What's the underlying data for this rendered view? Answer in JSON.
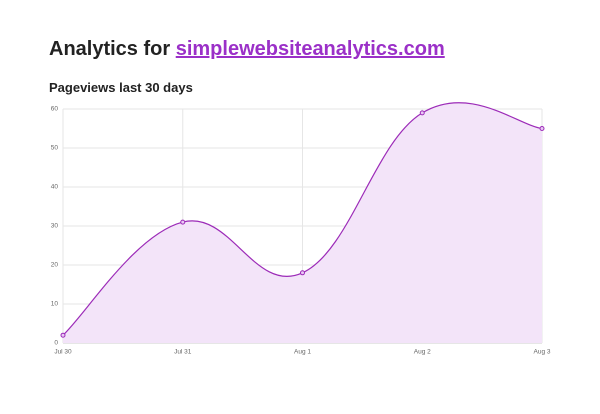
{
  "header": {
    "title_prefix": "Analytics for",
    "link": "simplewebsiteanalytics.com"
  },
  "chart_data": {
    "type": "line",
    "title": "Pageviews last 30 days",
    "categories": [
      "Jul 30",
      "Jul 31",
      "Aug 1",
      "Aug 2",
      "Aug 3"
    ],
    "series": [
      {
        "name": "Pageviews",
        "color": "#9c2bb8",
        "values": [
          2,
          31,
          18,
          59,
          55
        ]
      }
    ],
    "fill": "#f3e4f9",
    "ylim": [
      0,
      60
    ],
    "yticks": [
      0,
      10,
      20,
      30,
      40,
      50,
      60
    ],
    "grid": true
  }
}
